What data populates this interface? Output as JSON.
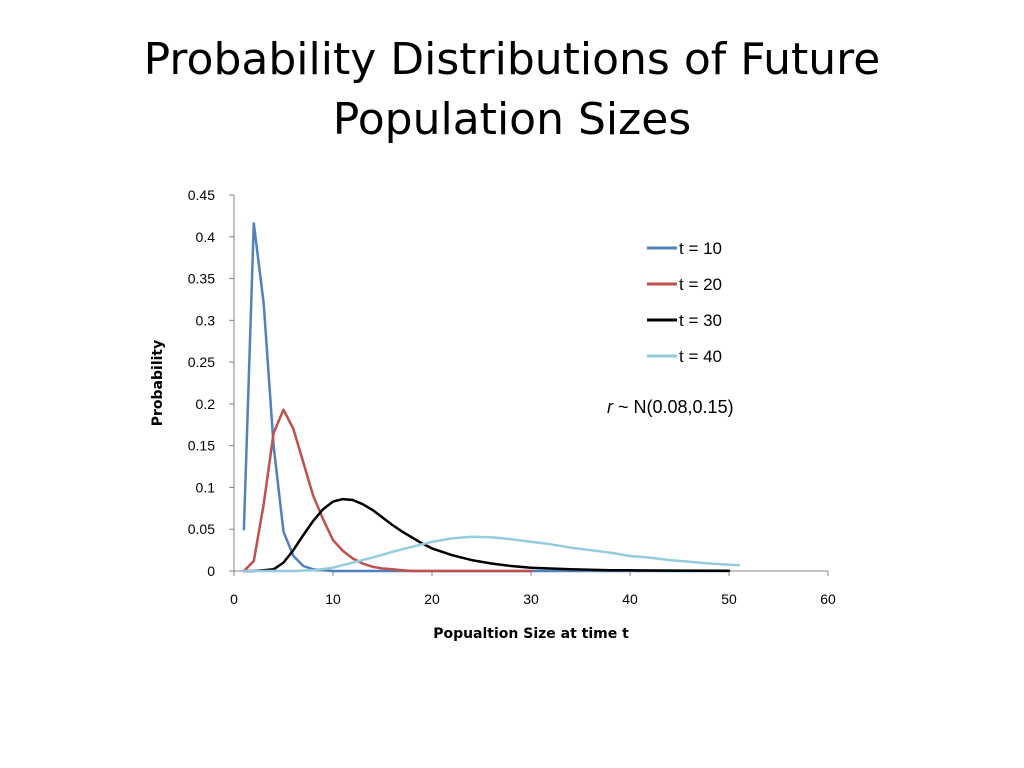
{
  "slide": {
    "title_line1": "Probability Distributions of Future",
    "title_line2": "Population Sizes"
  },
  "annotation": {
    "var": "r",
    "rest": " ~  N(0.08,0.15)"
  },
  "chart_data": {
    "type": "line",
    "xlabel": "Popualtion Size at time t",
    "ylabel": "Probability",
    "xlim": [
      0,
      60
    ],
    "ylim": [
      0,
      0.45
    ],
    "xticks": [
      "0",
      "10",
      "20",
      "30",
      "40",
      "50",
      "60"
    ],
    "yticks": [
      "0",
      "0.05",
      "0.1",
      "0.15",
      "0.2",
      "0.25",
      "0.3",
      "0.35",
      "0.4",
      "0.45"
    ],
    "grid": false,
    "legend_position": "right",
    "series": [
      {
        "name": "t = 10",
        "color": "#4f81bd",
        "x": [
          1,
          2,
          3,
          4,
          5,
          6,
          7,
          8,
          9,
          10,
          12,
          15,
          20,
          30,
          40,
          50
        ],
        "y": [
          0.05,
          0.416,
          0.32,
          0.15,
          0.047,
          0.018,
          0.006,
          0.002,
          0.001,
          0,
          0,
          0,
          0,
          0,
          0,
          0
        ]
      },
      {
        "name": "t = 20",
        "color": "#c0504d",
        "x": [
          1,
          2,
          3,
          4,
          5,
          6,
          7,
          8,
          9,
          10,
          11,
          12,
          13,
          14,
          15,
          16,
          17,
          18,
          20,
          25,
          30
        ],
        "y": [
          0,
          0.012,
          0.08,
          0.165,
          0.193,
          0.17,
          0.13,
          0.09,
          0.062,
          0.037,
          0.024,
          0.015,
          0.009,
          0.005,
          0.003,
          0.002,
          0.001,
          0,
          0,
          0,
          0
        ]
      },
      {
        "name": "t = 30",
        "color": "#000000",
        "x": [
          1,
          2,
          3,
          4,
          5,
          6,
          7,
          8,
          9,
          10,
          11,
          12,
          13,
          14,
          15,
          16,
          17,
          18,
          19,
          20,
          22,
          24,
          26,
          28,
          30,
          32,
          34,
          36,
          38,
          40,
          45,
          50
        ],
        "y": [
          0,
          0,
          0.001,
          0.002,
          0.01,
          0.025,
          0.043,
          0.06,
          0.074,
          0.083,
          0.086,
          0.085,
          0.08,
          0.073,
          0.064,
          0.055,
          0.047,
          0.04,
          0.033,
          0.027,
          0.019,
          0.013,
          0.009,
          0.006,
          0.004,
          0.003,
          0.002,
          0.0015,
          0.001,
          0.0008,
          0.0005,
          0.0003
        ]
      },
      {
        "name": "t = 40",
        "color": "#93cddd",
        "x": [
          1,
          4,
          6,
          8,
          10,
          12,
          14,
          16,
          18,
          20,
          22,
          24,
          26,
          28,
          30,
          32,
          34,
          36,
          38,
          40,
          42,
          44,
          46,
          48,
          51
        ],
        "y": [
          0,
          0,
          0,
          0.001,
          0.004,
          0.01,
          0.016,
          0.023,
          0.029,
          0.035,
          0.039,
          0.041,
          0.0405,
          0.038,
          0.035,
          0.032,
          0.028,
          0.025,
          0.022,
          0.018,
          0.016,
          0.013,
          0.011,
          0.009,
          0.007
        ]
      }
    ]
  }
}
